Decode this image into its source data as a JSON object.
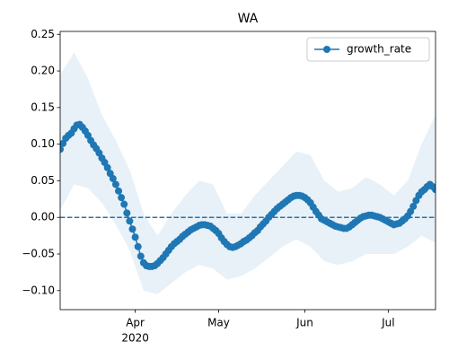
{
  "chart_data": {
    "type": "line",
    "title": "WA",
    "series": [
      {
        "name": "growth_rate",
        "color": "#1f77b4",
        "marker": "o",
        "values": [
          0.093,
          0.101,
          0.108,
          0.112,
          0.115,
          0.121,
          0.126,
          0.127,
          0.123,
          0.118,
          0.112,
          0.105,
          0.099,
          0.094,
          0.088,
          0.081,
          0.075,
          0.068,
          0.06,
          0.053,
          0.045,
          0.036,
          0.027,
          0.018,
          0.006,
          -0.005,
          -0.016,
          -0.027,
          -0.04,
          -0.053,
          -0.062,
          -0.066,
          -0.067,
          -0.067,
          -0.066,
          -0.063,
          -0.059,
          -0.055,
          -0.05,
          -0.045,
          -0.04,
          -0.036,
          -0.033,
          -0.03,
          -0.026,
          -0.023,
          -0.02,
          -0.017,
          -0.015,
          -0.013,
          -0.011,
          -0.01,
          -0.01,
          -0.011,
          -0.012,
          -0.015,
          -0.018,
          -0.022,
          -0.028,
          -0.033,
          -0.037,
          -0.04,
          -0.041,
          -0.04,
          -0.038,
          -0.036,
          -0.033,
          -0.031,
          -0.028,
          -0.025,
          -0.021,
          -0.018,
          -0.013,
          -0.009,
          -0.005,
          0.0,
          0.004,
          0.008,
          0.012,
          0.015,
          0.018,
          0.021,
          0.024,
          0.027,
          0.029,
          0.03,
          0.03,
          0.029,
          0.027,
          0.024,
          0.02,
          0.014,
          0.008,
          0.003,
          -0.002,
          -0.004,
          -0.006,
          -0.008,
          -0.01,
          -0.012,
          -0.013,
          -0.014,
          -0.015,
          -0.015,
          -0.013,
          -0.01,
          -0.007,
          -0.004,
          -0.001,
          0.001,
          0.002,
          0.003,
          0.003,
          0.002,
          0.001,
          0.0,
          -0.002,
          -0.004,
          -0.006,
          -0.008,
          -0.01,
          -0.009,
          -0.008,
          -0.005,
          -0.002,
          0.002,
          0.008,
          0.015,
          0.023,
          0.03,
          0.035,
          0.038,
          0.042,
          0.045,
          0.042,
          0.038
        ]
      }
    ],
    "band": {
      "color": "#1f77b4",
      "alpha": 0.1,
      "x": [
        0,
        5,
        10,
        15,
        20,
        25,
        30,
        35,
        40,
        45,
        50,
        55,
        60,
        65,
        70,
        75,
        80,
        85,
        90,
        95,
        100,
        105,
        110,
        115,
        120,
        125,
        130,
        135
      ],
      "upper": [
        0.195,
        0.225,
        0.19,
        0.14,
        0.105,
        0.065,
        0.005,
        -0.025,
        0.005,
        0.03,
        0.05,
        0.045,
        0.005,
        0.005,
        0.03,
        0.05,
        0.07,
        0.09,
        0.085,
        0.05,
        0.035,
        0.04,
        0.055,
        0.045,
        0.03,
        0.05,
        0.1,
        0.14
      ],
      "lower": [
        0.01,
        0.045,
        0.04,
        0.02,
        -0.01,
        -0.045,
        -0.1,
        -0.105,
        -0.09,
        -0.075,
        -0.065,
        -0.07,
        -0.085,
        -0.08,
        -0.07,
        -0.055,
        -0.04,
        -0.03,
        -0.04,
        -0.06,
        -0.065,
        -0.06,
        -0.05,
        -0.05,
        -0.05,
        -0.04,
        -0.025,
        -0.035
      ]
    },
    "hline": {
      "value": 0,
      "color": "#1f77b4",
      "style": "dashed"
    },
    "xlim": [
      0,
      135
    ],
    "xticks": [
      {
        "value": 27,
        "label": "Apr"
      },
      {
        "value": 57,
        "label": "May"
      },
      {
        "value": 88,
        "label": "Jun"
      },
      {
        "value": 118,
        "label": "Jul"
      }
    ],
    "x_secondary_label": "2020",
    "ylim": [
      -0.126,
      0.254
    ],
    "yticks": [
      {
        "value": -0.1,
        "label": "−0.10"
      },
      {
        "value": -0.05,
        "label": "−0.05"
      },
      {
        "value": 0,
        "label": "0.00"
      },
      {
        "value": 0.05,
        "label": "0.05"
      },
      {
        "value": 0.1,
        "label": "0.10"
      },
      {
        "value": 0.15,
        "label": "0.15"
      },
      {
        "value": 0.2,
        "label": "0.20"
      },
      {
        "value": 0.25,
        "label": "0.25"
      }
    ],
    "grid": false,
    "legend": "upper right"
  }
}
